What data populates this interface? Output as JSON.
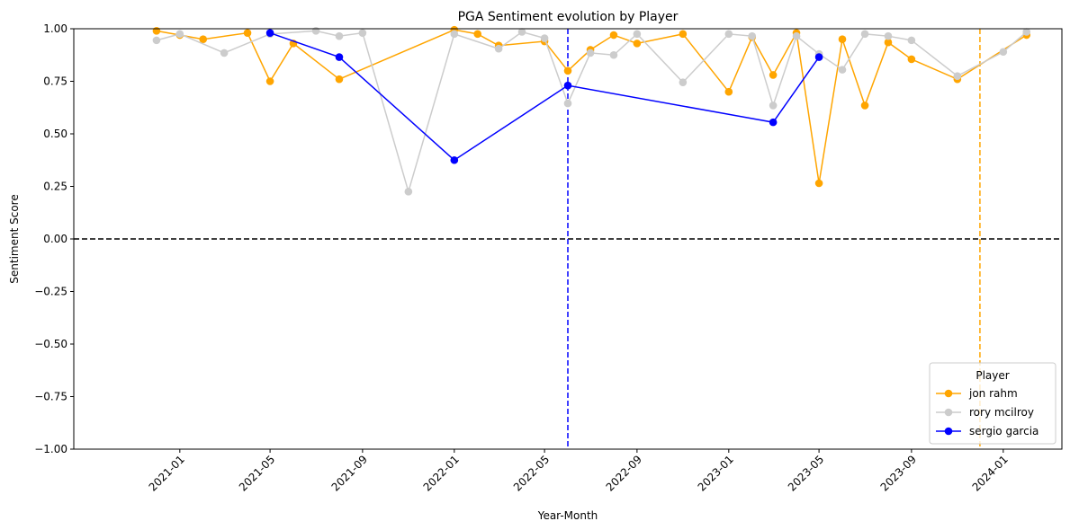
{
  "chart_data": {
    "type": "line",
    "title": "PGA Sentiment evolution by Player",
    "xlabel": "Year-Month",
    "ylabel": "Sentiment Score",
    "ylim": [
      -1.0,
      1.0
    ],
    "xlim": [
      "2020-08-13",
      "2024-03-19"
    ],
    "yticks": [
      -1.0,
      -0.75,
      -0.5,
      -0.25,
      0.0,
      0.25,
      0.5,
      0.75,
      1.0
    ],
    "ytick_labels": [
      "−1.00",
      "−0.75",
      "−0.50",
      "−0.25",
      "0.00",
      "0.25",
      "0.50",
      "0.75",
      "1.00"
    ],
    "xticks": [
      "2021-01-01",
      "2021-05-01",
      "2021-09-01",
      "2022-01-01",
      "2022-05-01",
      "2022-09-01",
      "2023-01-01",
      "2023-05-01",
      "2023-09-01",
      "2024-01-01"
    ],
    "xtick_labels": [
      "2021-01",
      "2021-05",
      "2021-09",
      "2022-01",
      "2022-05",
      "2022-09",
      "2023-01",
      "2023-05",
      "2023-09",
      "2024-01"
    ],
    "grid": false,
    "legend": {
      "title": "Player",
      "placement": "lower right"
    },
    "reference_lines": [
      {
        "orientation": "horizontal",
        "value": 0.0,
        "color": "#000000",
        "style": "dashed"
      },
      {
        "orientation": "vertical",
        "value": "2022-06-01",
        "color": "#0000ff",
        "style": "dashed"
      },
      {
        "orientation": "vertical",
        "value": "2023-12-01",
        "color": "#ffa500",
        "style": "dashed"
      }
    ],
    "series": [
      {
        "name": "jon rahm",
        "color": "#ffa500",
        "points": [
          [
            "2020-12-01",
            0.99
          ],
          [
            "2021-01-01",
            0.97
          ],
          [
            "2021-02-01",
            0.95
          ],
          [
            "2021-04-01",
            0.98
          ],
          [
            "2021-05-01",
            0.75
          ],
          [
            "2021-06-01",
            0.93
          ],
          [
            "2021-08-01",
            0.76
          ],
          [
            "2022-01-01",
            0.995
          ],
          [
            "2022-02-01",
            0.975
          ],
          [
            "2022-03-01",
            0.92
          ],
          [
            "2022-05-01",
            0.94
          ],
          [
            "2022-06-01",
            0.8
          ],
          [
            "2022-07-01",
            0.9
          ],
          [
            "2022-08-01",
            0.97
          ],
          [
            "2022-09-01",
            0.93
          ],
          [
            "2022-11-01",
            0.975
          ],
          [
            "2023-01-01",
            0.7
          ],
          [
            "2023-02-01",
            0.96
          ],
          [
            "2023-03-01",
            0.78
          ],
          [
            "2023-04-01",
            0.98
          ],
          [
            "2023-05-01",
            0.265
          ],
          [
            "2023-06-01",
            0.95
          ],
          [
            "2023-07-01",
            0.635
          ],
          [
            "2023-08-01",
            0.935
          ],
          [
            "2023-09-01",
            0.855
          ],
          [
            "2023-11-01",
            0.76
          ],
          [
            "2024-02-01",
            0.97
          ]
        ]
      },
      {
        "name": "rory mcilroy",
        "color": "#cccccc",
        "points": [
          [
            "2020-12-01",
            0.945
          ],
          [
            "2021-01-01",
            0.975
          ],
          [
            "2021-03-01",
            0.885
          ],
          [
            "2021-05-01",
            0.975
          ],
          [
            "2021-07-01",
            0.99
          ],
          [
            "2021-08-01",
            0.965
          ],
          [
            "2021-09-01",
            0.98
          ],
          [
            "2021-11-01",
            0.225
          ],
          [
            "2022-01-01",
            0.975
          ],
          [
            "2022-03-01",
            0.905
          ],
          [
            "2022-04-01",
            0.985
          ],
          [
            "2022-05-01",
            0.955
          ],
          [
            "2022-06-01",
            0.645
          ],
          [
            "2022-07-01",
            0.885
          ],
          [
            "2022-08-01",
            0.875
          ],
          [
            "2022-09-01",
            0.975
          ],
          [
            "2022-11-01",
            0.745
          ],
          [
            "2023-01-01",
            0.975
          ],
          [
            "2023-02-01",
            0.965
          ],
          [
            "2023-03-01",
            0.635
          ],
          [
            "2023-04-01",
            0.965
          ],
          [
            "2023-05-01",
            0.88
          ],
          [
            "2023-06-01",
            0.805
          ],
          [
            "2023-07-01",
            0.975
          ],
          [
            "2023-08-01",
            0.965
          ],
          [
            "2023-09-01",
            0.945
          ],
          [
            "2023-11-01",
            0.775
          ],
          [
            "2024-01-01",
            0.89
          ],
          [
            "2024-02-01",
            0.985
          ]
        ]
      },
      {
        "name": "sergio garcia",
        "color": "#0000ff",
        "points": [
          [
            "2021-05-01",
            0.98
          ],
          [
            "2021-08-01",
            0.865
          ],
          [
            "2022-01-01",
            0.375
          ],
          [
            "2022-06-01",
            0.73
          ],
          [
            "2023-03-01",
            0.555
          ],
          [
            "2023-05-01",
            0.865
          ]
        ]
      }
    ]
  }
}
